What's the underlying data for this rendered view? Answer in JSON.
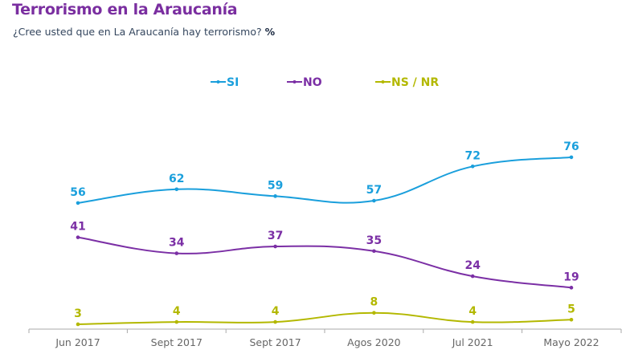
{
  "header": {
    "title": "Terrorismo en la Araucanía",
    "subtitle": "¿Cree usted que en La Araucanía hay terrorismo?",
    "unit": "%"
  },
  "chart_data": {
    "type": "line",
    "title": "Terrorismo en la Araucanía",
    "subtitle": "¿Cree usted que en La Araucanía hay terrorismo? %",
    "xlabel": "",
    "ylabel": "",
    "ylim": [
      0,
      85
    ],
    "grid": false,
    "legend_position": "top-center",
    "categories": [
      "Jun 2017",
      "Sept 2017",
      "Sept 2017",
      "Agos 2020",
      "Jul 2021",
      "Mayo 2022"
    ],
    "series": [
      {
        "name": "SI",
        "color": "#1a9fdc",
        "values": [
          56,
          62,
          59,
          57,
          72,
          76
        ]
      },
      {
        "name": "NO",
        "color": "#7b2fa5",
        "values": [
          41,
          34,
          37,
          35,
          24,
          19
        ]
      },
      {
        "name": "NS / NR",
        "color": "#b3b800",
        "values": [
          3,
          4,
          4,
          8,
          4,
          5
        ]
      }
    ]
  }
}
